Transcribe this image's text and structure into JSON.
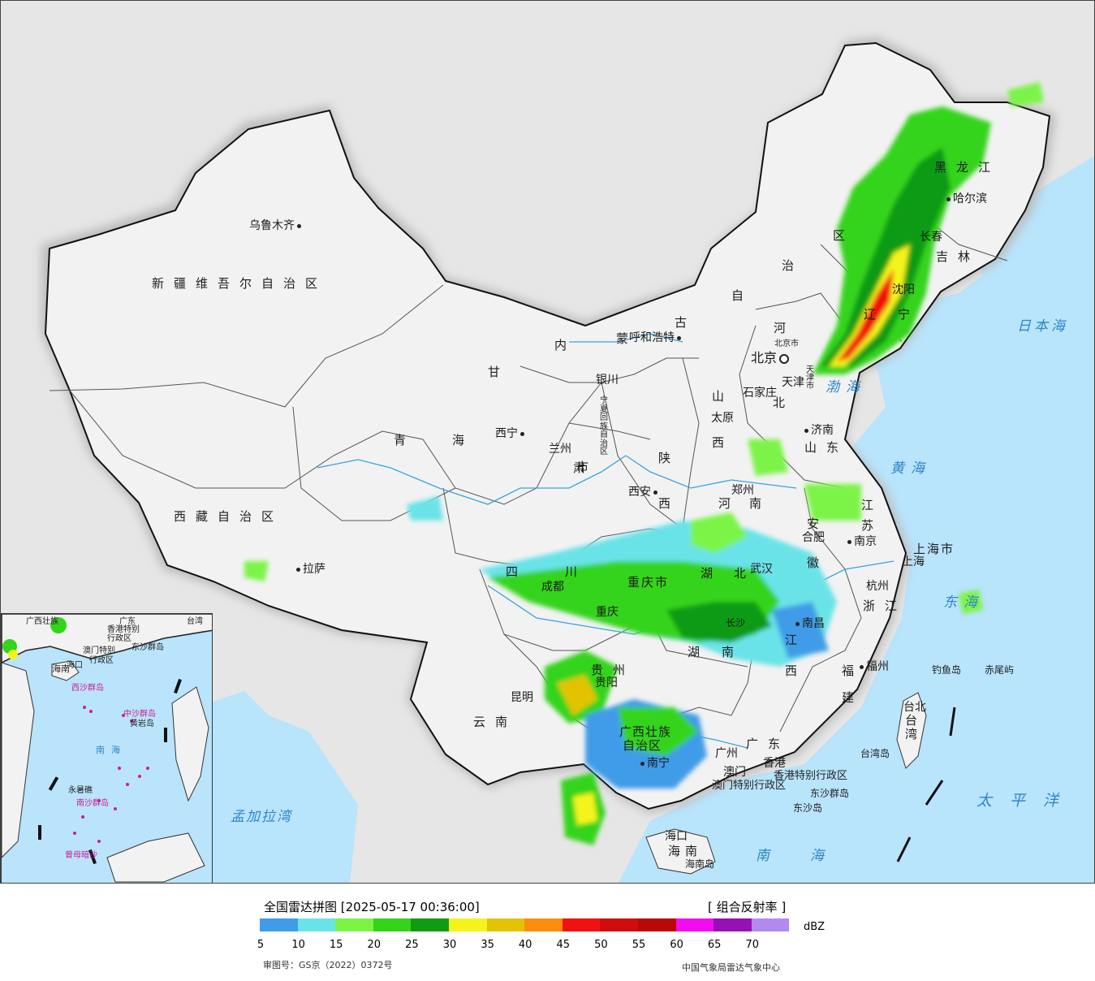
{
  "legend": {
    "title": "全国雷达拼图 [2025-05-17 00:36:00]",
    "product": "[ 组合反射率 ]",
    "unit": "dBZ",
    "colors": [
      "#3f9ce8",
      "#6ae3e8",
      "#7cf446",
      "#34d41d",
      "#119b12",
      "#f4f41c",
      "#e3c305",
      "#fb8d0e",
      "#f21111",
      "#cf0d0d",
      "#b90808",
      "#f30cf0",
      "#9710b5",
      "#b08af0"
    ],
    "ticks": [
      "5",
      "10",
      "15",
      "20",
      "25",
      "30",
      "35",
      "40",
      "45",
      "50",
      "55",
      "60",
      "65",
      "70"
    ],
    "approval": "审图号：GS京（2022）0372号",
    "producer": "中国气象局雷达气象中心"
  },
  "map": {
    "provinces": [
      {
        "id": "xinjiang",
        "text": "新疆维吾尔自治区"
      },
      {
        "id": "xizang",
        "text": "西藏自治区"
      },
      {
        "id": "qinghai-1",
        "text": "青"
      },
      {
        "id": "qinghai-2",
        "text": "海"
      },
      {
        "id": "gansu-1",
        "text": "甘"
      },
      {
        "id": "gansu-2",
        "text": "肃"
      },
      {
        "id": "neimenggu-1",
        "text": "内"
      },
      {
        "id": "neimenggu-2",
        "text": "蒙"
      },
      {
        "id": "neimenggu-3",
        "text": "古"
      },
      {
        "id": "neimenggu-4",
        "text": "自"
      },
      {
        "id": "neimenggu-5",
        "text": "治"
      },
      {
        "id": "neimenggu-6",
        "text": "区"
      },
      {
        "id": "heilongjiang",
        "text": "黑龙江"
      },
      {
        "id": "jilin",
        "text": "吉林"
      },
      {
        "id": "liaoning-1",
        "text": "辽"
      },
      {
        "id": "liaoning-2",
        "text": "宁"
      },
      {
        "id": "hebei-1",
        "text": "河"
      },
      {
        "id": "hebei-2",
        "text": "北"
      },
      {
        "id": "shanxi-1",
        "text": "山"
      },
      {
        "id": "shanxi-2",
        "text": "西"
      },
      {
        "id": "shandong",
        "text": "山东"
      },
      {
        "id": "henan-1",
        "text": "河"
      },
      {
        "id": "henan-2",
        "text": "南"
      },
      {
        "id": "shaanxi-1",
        "text": "陕"
      },
      {
        "id": "shaanxi-2",
        "text": "西"
      },
      {
        "id": "sichuan-1",
        "text": "四"
      },
      {
        "id": "sichuan-2",
        "text": "川"
      },
      {
        "id": "chongqing",
        "text": "重庆市"
      },
      {
        "id": "hubei-1",
        "text": "湖"
      },
      {
        "id": "hubei-2",
        "text": "北"
      },
      {
        "id": "hunan-1",
        "text": "湖"
      },
      {
        "id": "hunan-2",
        "text": "南"
      },
      {
        "id": "jiangxi-1",
        "text": "江"
      },
      {
        "id": "jiangxi-2",
        "text": "西"
      },
      {
        "id": "anhui-1",
        "text": "安"
      },
      {
        "id": "anhui-2",
        "text": "徽"
      },
      {
        "id": "jiangsu-1",
        "text": "江"
      },
      {
        "id": "jiangsu-2",
        "text": "苏"
      },
      {
        "id": "zhejiang",
        "text": "浙江"
      },
      {
        "id": "fujian-1",
        "text": "福"
      },
      {
        "id": "fujian-2",
        "text": "建"
      },
      {
        "id": "guizhou",
        "text": "贵州"
      },
      {
        "id": "yunnan",
        "text": "云南"
      },
      {
        "id": "guangxi-1",
        "text": "广西壮族"
      },
      {
        "id": "guangxi-2",
        "text": "自治区"
      },
      {
        "id": "guangdong",
        "text": "广东"
      },
      {
        "id": "hainan",
        "text": "海南"
      },
      {
        "id": "taiwan",
        "text": "台湾"
      },
      {
        "id": "shanghai",
        "text": "上海市"
      },
      {
        "id": "hongkong",
        "text": "香港特别行政区"
      },
      {
        "id": "macau",
        "text": "澳门特别行政区"
      },
      {
        "id": "beijing-sm",
        "text": "北京市"
      },
      {
        "id": "tianjin-sm",
        "text": "天津市"
      },
      {
        "id": "ningxia",
        "text": "宁夏回族自治区"
      },
      {
        "id": "shaanxi-city",
        "text": "市"
      }
    ],
    "cities": [
      {
        "id": "urumqi",
        "text": "乌鲁木齐"
      },
      {
        "id": "lhasa",
        "text": "拉萨"
      },
      {
        "id": "xining",
        "text": "西宁"
      },
      {
        "id": "lanzhou",
        "text": "兰州"
      },
      {
        "id": "yinchuan",
        "text": "银川"
      },
      {
        "id": "hohhot",
        "text": "呼和浩特"
      },
      {
        "id": "beijing",
        "text": "北京"
      },
      {
        "id": "tianjin",
        "text": "天津"
      },
      {
        "id": "shijiazhuang",
        "text": "石家庄"
      },
      {
        "id": "taiyuan",
        "text": "太原"
      },
      {
        "id": "jinan",
        "text": "济南"
      },
      {
        "id": "zhengzhou",
        "text": "郑州"
      },
      {
        "id": "xian",
        "text": "西安"
      },
      {
        "id": "chengdu",
        "text": "成都"
      },
      {
        "id": "chongqing",
        "text": "重庆"
      },
      {
        "id": "wuhan",
        "text": "武汉"
      },
      {
        "id": "hefei",
        "text": "合肥"
      },
      {
        "id": "nanjing",
        "text": "南京"
      },
      {
        "id": "shanghai",
        "text": "上海"
      },
      {
        "id": "hangzhou",
        "text": "杭州"
      },
      {
        "id": "nanchang",
        "text": "南昌"
      },
      {
        "id": "changsha",
        "text": "长沙"
      },
      {
        "id": "fuzhou",
        "text": "福州"
      },
      {
        "id": "guiyang",
        "text": "贵阳"
      },
      {
        "id": "kunming",
        "text": "昆明"
      },
      {
        "id": "nanning",
        "text": "南宁"
      },
      {
        "id": "guangzhou",
        "text": "广州"
      },
      {
        "id": "macau",
        "text": "澳门"
      },
      {
        "id": "hongkong",
        "text": "香港"
      },
      {
        "id": "haikou",
        "text": "海口"
      },
      {
        "id": "taibei",
        "text": "台北"
      },
      {
        "id": "harbin",
        "text": "哈尔滨"
      },
      {
        "id": "changchun",
        "text": "长春"
      },
      {
        "id": "shenyang",
        "text": "沈阳"
      }
    ],
    "seas": [
      {
        "id": "bohai",
        "text": "渤海"
      },
      {
        "id": "huanghai",
        "text": "黄海"
      },
      {
        "id": "donghai",
        "text": "东海"
      },
      {
        "id": "nanhai",
        "text": "南海"
      },
      {
        "id": "japan-sea",
        "text": "日本海"
      },
      {
        "id": "pacific",
        "text": "太平洋"
      },
      {
        "id": "bengal",
        "text": "孟加拉湾"
      }
    ],
    "islands": [
      {
        "id": "diaoyu",
        "text": "钓鱼岛"
      },
      {
        "id": "chiwei",
        "text": "赤尾屿"
      },
      {
        "id": "dongsha-qd",
        "text": "东沙群岛"
      },
      {
        "id": "dongsha-d",
        "text": "东沙岛"
      },
      {
        "id": "hainan-dao",
        "text": "海南岛"
      },
      {
        "id": "taiwan-dao",
        "text": "台湾岛"
      }
    ],
    "inset": [
      {
        "id": "hainan",
        "text": "海南"
      },
      {
        "id": "haikou",
        "text": "海口"
      },
      {
        "id": "xisha",
        "text": "西沙群岛"
      },
      {
        "id": "zhongsha",
        "text": "中沙群岛"
      },
      {
        "id": "huangyan",
        "text": "黄岩岛"
      },
      {
        "id": "nanhai",
        "text": "南海"
      },
      {
        "id": "nansha",
        "text": "南沙群岛"
      },
      {
        "id": "dongsha",
        "text": "东沙群岛"
      },
      {
        "id": "hk",
        "text": "香港特别"
      },
      {
        "id": "hk2",
        "text": "行政区"
      },
      {
        "id": "mo",
        "text": "澳门特别"
      },
      {
        "id": "mo2",
        "text": "行政区"
      },
      {
        "id": "taiwan",
        "text": "台湾"
      },
      {
        "id": "guangxi",
        "text": "广西壮族"
      },
      {
        "id": "guangdong",
        "text": "广东"
      },
      {
        "id": "zengmu",
        "text": "曾母暗沙"
      },
      {
        "id": "yongshu",
        "text": "永暑礁"
      }
    ]
  }
}
